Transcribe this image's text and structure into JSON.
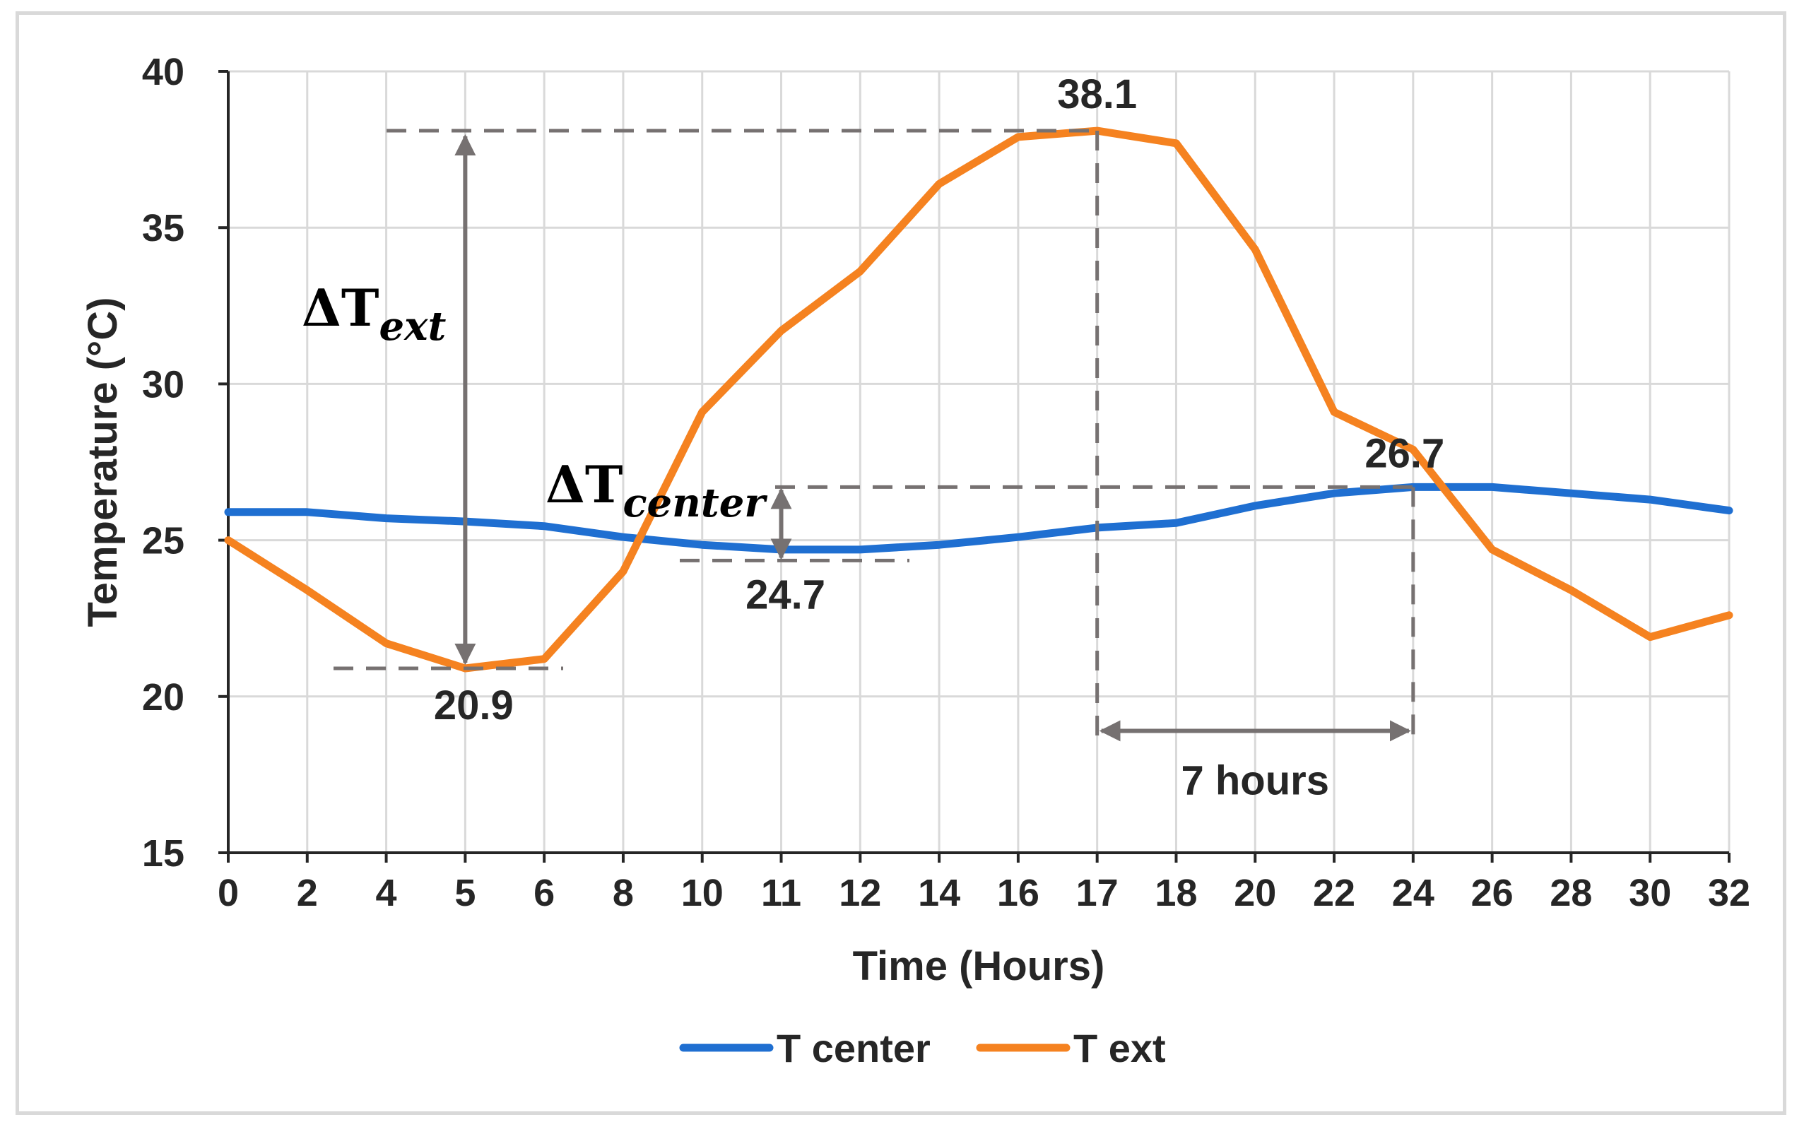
{
  "chart_data": {
    "type": "line",
    "xlabel": "Time (Hours)",
    "ylabel": "Temperature (°C)",
    "ylim": [
      15,
      40
    ],
    "yticks": [
      15,
      20,
      25,
      30,
      35,
      40
    ],
    "xtick_labels": [
      "0",
      "2",
      "4",
      "5",
      "6",
      "8",
      "10",
      "11",
      "12",
      "14",
      "16",
      "17",
      "18",
      "20",
      "22",
      "24",
      "26",
      "28",
      "30",
      "32"
    ],
    "grid": true,
    "legend_position": "bottom",
    "series": [
      {
        "name": "T center",
        "color": "#1f6fd1",
        "values": [
          25.9,
          25.9,
          25.7,
          25.6,
          25.45,
          25.1,
          24.85,
          24.7,
          24.7,
          24.85,
          25.1,
          25.4,
          25.55,
          26.1,
          26.5,
          26.7,
          26.7,
          26.5,
          26.3,
          25.95
        ]
      },
      {
        "name": "T ext",
        "color": "#f58220",
        "values": [
          25.0,
          23.4,
          21.7,
          20.9,
          21.2,
          24.0,
          29.1,
          31.7,
          33.6,
          36.4,
          37.9,
          38.1,
          37.7,
          34.3,
          29.1,
          27.9,
          24.7,
          23.4,
          21.9,
          22.6
        ]
      }
    ],
    "annotations": {
      "max_ext_label": "38.1",
      "min_ext_label": "20.9",
      "max_center_label": "26.7",
      "min_center_label": "24.7",
      "lag_label": "7 hours",
      "delta_symbol": "ΔT",
      "delta_ext_sub": "ext",
      "delta_center_sub": "center"
    }
  },
  "colors": {
    "grid": "#d9d9d9",
    "axis": "#262626",
    "annotation": "#767171",
    "frame": "#d9d9d9"
  }
}
